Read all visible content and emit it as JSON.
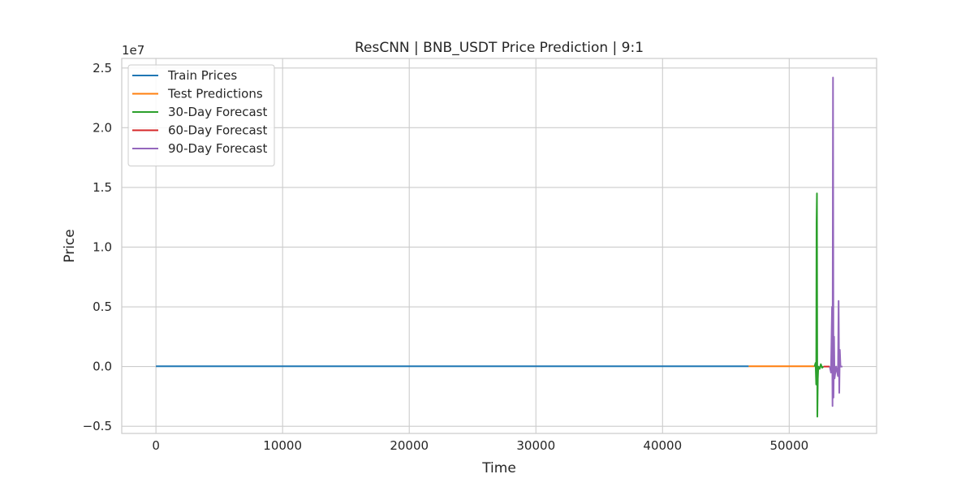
{
  "chart_data": {
    "type": "line",
    "title": "ResCNN | BNB_USDT Price Prediction | 9:1",
    "xlabel": "Time",
    "ylabel": "Price",
    "y_offset_label": "1e7",
    "xlim": [
      -2700,
      56900
    ],
    "ylim": [
      -5600000,
      25800000
    ],
    "x_ticks": [
      0,
      10000,
      20000,
      30000,
      40000,
      50000
    ],
    "x_tick_labels": [
      "0",
      "10000",
      "20000",
      "30000",
      "40000",
      "50000"
    ],
    "y_ticks": [
      -5000000,
      0,
      5000000,
      10000000,
      15000000,
      20000000,
      25000000
    ],
    "y_tick_labels": [
      "−0.5",
      "0.0",
      "0.5",
      "1.0",
      "1.5",
      "2.0",
      "2.5"
    ],
    "grid": true,
    "legend_position": "top-left",
    "series": [
      {
        "name": "Train Prices",
        "color": "#1f77b4",
        "x": [
          0,
          46800
        ],
        "y": [
          30000,
          30000
        ]
      },
      {
        "name": "Test Predictions",
        "color": "#ff7f0e",
        "x": [
          46800,
          52000
        ],
        "y": [
          30000,
          30000
        ]
      },
      {
        "name": "30-Day Forecast",
        "color": "#2ca02c",
        "x": [
          52000,
          52080,
          52130,
          52160,
          52190,
          52220,
          52260,
          52300,
          52400,
          52500,
          52600,
          52700
        ],
        "y": [
          0,
          300000,
          -1500000,
          12000000,
          14500000,
          -4200000,
          -1000000,
          0,
          -200000,
          200000,
          -100000,
          0
        ]
      },
      {
        "name": "60-Day Forecast",
        "color": "#d62728",
        "x": [
          52700,
          53200
        ],
        "y": [
          0,
          0
        ]
      },
      {
        "name": "90-Day Forecast",
        "color": "#9467bd",
        "x": [
          53200,
          53300,
          53380,
          53420,
          53460,
          53500,
          53540,
          53580,
          53700,
          53850,
          53900,
          53950,
          54000,
          54050,
          54100,
          54200
        ],
        "y": [
          0,
          -500000,
          5000000,
          -3300000,
          24200000,
          -2600000,
          2500000,
          -1000000,
          0,
          -800000,
          5500000,
          -2200000,
          1400000,
          0,
          0,
          0
        ]
      }
    ]
  }
}
